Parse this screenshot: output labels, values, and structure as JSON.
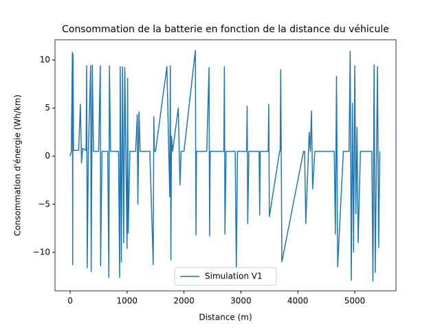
{
  "chart_data": {
    "type": "line",
    "title": "Consommation de la batterie en fonction de la distance du véhicule",
    "xlabel": "Distance (m)",
    "ylabel": "Consommation d'énergie (Wh/km)",
    "legend_position": "lower center",
    "x": [
      0,
      20,
      40,
      45,
      50,
      60,
      150,
      180,
      200,
      220,
      280,
      290,
      300,
      320,
      360,
      370,
      390,
      410,
      500,
      530,
      535,
      560,
      660,
      680,
      690,
      710,
      850,
      870,
      880,
      900,
      920,
      940,
      960,
      1000,
      1010,
      1020,
      1050,
      1150,
      1180,
      1190,
      1210,
      1230,
      1250,
      1400,
      1460,
      1470,
      1480,
      1500,
      1700,
      1750,
      1760,
      1770,
      1780,
      1800,
      1900,
      1930,
      1950,
      2000,
      2200,
      2210,
      2220,
      2240,
      2400,
      2440,
      2450,
      2460,
      2500,
      2700,
      2710,
      2720,
      2740,
      2900,
      2920,
      2940,
      3100,
      3110,
      3120,
      3140,
      3320,
      3330,
      3340,
      3480,
      3490,
      3500,
      3680,
      3690,
      3700,
      3720,
      4100,
      4120,
      4140,
      4200,
      4220,
      4240,
      4260,
      4300,
      4600,
      4640,
      4660,
      4680,
      4700,
      4800,
      4900,
      4920,
      4940,
      4960,
      4980,
      5000,
      5020,
      5040,
      5060,
      5100,
      5300,
      5320,
      5340,
      5360,
      5400,
      5420,
      5440
    ],
    "series": [
      {
        "name": "Simulation V1",
        "color": "#1f77b4",
        "values": [
          0,
          0.5,
          10.8,
          -11.3,
          10.6,
          0.6,
          0.6,
          5.4,
          -0.7,
          0.8,
          0.6,
          9.4,
          -11.6,
          0.5,
          9.4,
          -12.0,
          9.5,
          0.5,
          0.5,
          9.4,
          -11.4,
          0.5,
          0.5,
          -12.6,
          9.4,
          0.5,
          0.5,
          -12.6,
          9.3,
          -11.0,
          9.3,
          -9.0,
          9.2,
          -9.6,
          8.1,
          -8.0,
          0.5,
          0.5,
          4.3,
          -5.0,
          4.6,
          0.5,
          0.5,
          0.5,
          -11.3,
          4.1,
          0.5,
          0.5,
          9.3,
          -4.2,
          9.4,
          -10.8,
          2.1,
          0.5,
          5.0,
          -3.0,
          0.5,
          0.5,
          11.0,
          -8.2,
          0.5,
          0.5,
          0.5,
          9.2,
          -8.3,
          0.5,
          0.5,
          0.5,
          9.3,
          -8.1,
          0.5,
          0.5,
          -11.9,
          0.5,
          0.5,
          5.2,
          -7.0,
          0.5,
          0.5,
          -6.1,
          0.5,
          0.5,
          5.4,
          -6.3,
          0.5,
          0.5,
          9.0,
          -11.0,
          0.5,
          0.5,
          -7.0,
          2.5,
          0.5,
          4.7,
          -3.4,
          0.5,
          0.5,
          0.5,
          -8.1,
          8.3,
          -11.5,
          0.5,
          0.5,
          10.9,
          -12.9,
          5.5,
          -10.0,
          9.4,
          -6.0,
          3.0,
          -9.0,
          0.5,
          0.5,
          -13.0,
          9.5,
          -12.1,
          9.3,
          -9.5,
          0.5
        ]
      }
    ],
    "xlim": [
      -266,
      5725
    ],
    "ylim": [
      -14.0,
      12.1
    ],
    "xticks": [
      0,
      1000,
      2000,
      3000,
      4000,
      5000
    ],
    "yticks": [
      {
        "value": -10,
        "label": "−10"
      },
      {
        "value": -5,
        "label": "−5"
      },
      0,
      5,
      10
    ]
  }
}
